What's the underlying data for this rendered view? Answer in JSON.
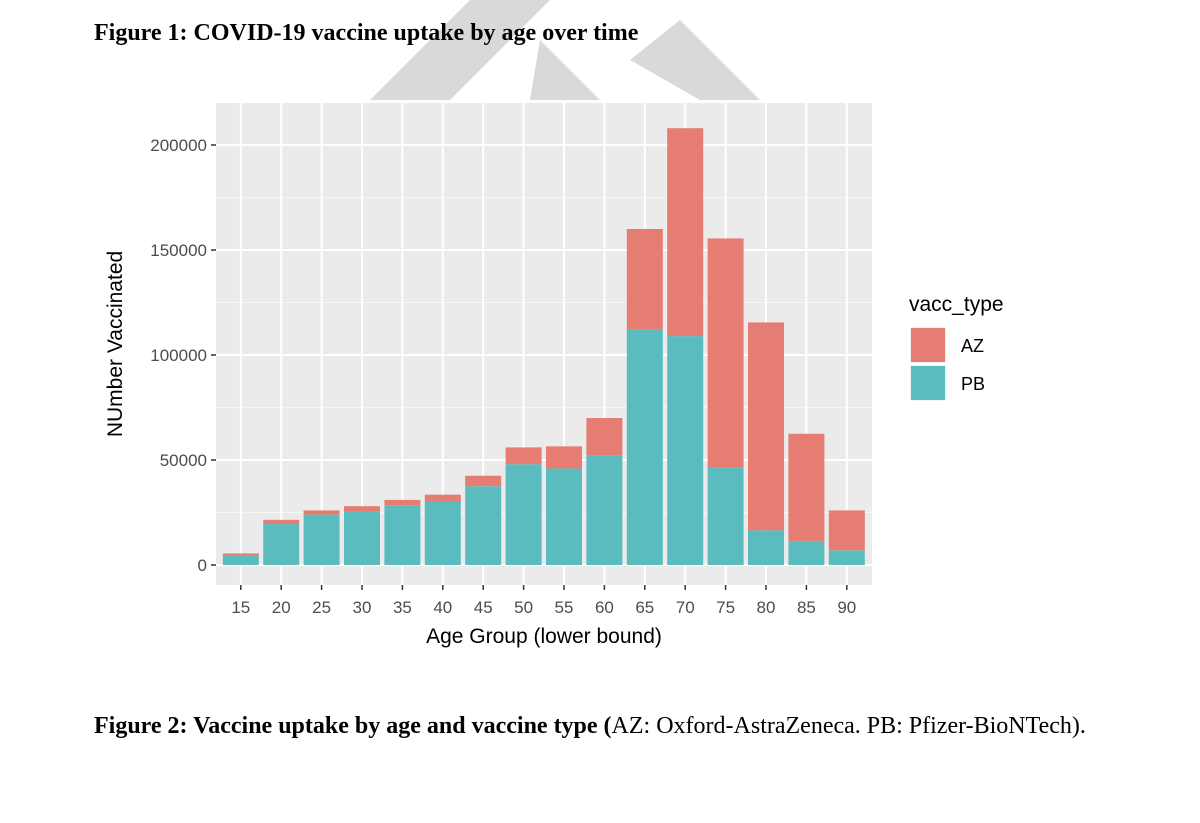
{
  "figure1": {
    "title": "Figure 1: COVID-19 vaccine uptake by age over time"
  },
  "figure2": {
    "caption_bold": "Figure 2: Vaccine uptake by age and vaccine type (",
    "caption_rest": "AZ: Oxford-AstraZeneca. PB: Pfizer-BioNTech)."
  },
  "watermark": {
    "color": "#d9d9d9"
  },
  "chart_data": {
    "type": "bar",
    "stacked": true,
    "xlabel": "Age Group (lower bound)",
    "ylabel": "NUmber Vaccinated",
    "ylim": [
      0,
      215000
    ],
    "yticks": [
      0,
      50000,
      100000,
      150000,
      200000
    ],
    "ytick_labels": [
      "0",
      "50000",
      "100000",
      "150000",
      "200000"
    ],
    "categories": [
      "15",
      "20",
      "25",
      "30",
      "35",
      "40",
      "45",
      "50",
      "55",
      "60",
      "65",
      "70",
      "75",
      "80",
      "85",
      "90"
    ],
    "series": [
      {
        "name": "PB",
        "color": "#5bbcc0",
        "values": [
          4500,
          19500,
          24000,
          25500,
          28500,
          30000,
          37500,
          48000,
          46000,
          52000,
          112000,
          109000,
          46500,
          16500,
          11500,
          7000
        ]
      },
      {
        "name": "AZ",
        "color": "#e57d73",
        "values": [
          1000,
          2000,
          2000,
          2500,
          2500,
          3500,
          5000,
          8000,
          10500,
          18000,
          48000,
          99000,
          109000,
          99000,
          51000,
          19000
        ]
      }
    ],
    "legend": {
      "title": "vacc_type",
      "entries": [
        "AZ",
        "PB"
      ],
      "placement": "right"
    },
    "panel_background": "#ebebeb",
    "grid": true
  }
}
